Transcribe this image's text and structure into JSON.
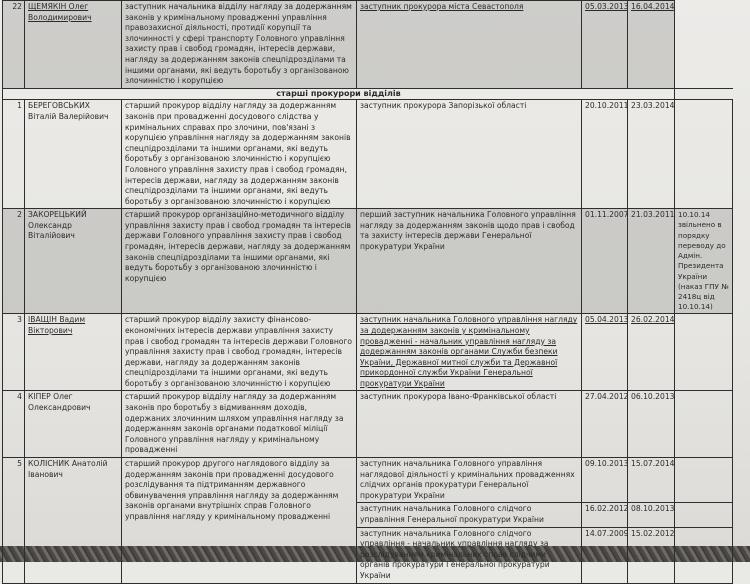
{
  "section_title": "старші прокурори відділів",
  "rows": [
    {
      "no": "22",
      "name": "ЩЕМЯКІН Олег Володимирович",
      "position": "заступник начальника відділу нагляду за додержанням законів у кримінальному провадженні управління правозахисної діяльності, протидії корупції та злочинності у сфері транспорту Головного управління захисту прав і свобод громадян, інтересів держави, нагляду за додержанням законів спецпідрозділами та іншими органами, які ведуть боротьбу з організованою злочинністю і корупцією",
      "previous": "заступник прокурора міста Севастополя",
      "from": "05.03.2013",
      "to": "16.04.2014",
      "note": ""
    },
    {
      "no": "1",
      "name": "БЕРЕГОВСЬКИХ Віталій Валерійович",
      "position": "старший прокурор відділу нагляду за додержанням законів при провадженні досудового слідства у кримінальних справах про злочини, пов'язані з корупцією управління нагляду за додержанням законів спецпідрозділами та іншими органами, які ведуть боротьбу з організованою злочинністю і корупцією Головного управління захисту прав і свобод громадян, інтересів держави, нагляду за додержанням законів спецпідрозділами та іншими органами, які ведуть боротьбу з організованою злочинністю і корупцією",
      "previous": "заступник прокурора Запорізької області",
      "from": "20.10.2011",
      "to": "23.03.2014",
      "note": ""
    },
    {
      "no": "2",
      "name": "ЗАКОРЕЦЬКИЙ Олександр Віталійович",
      "position": "старший прокурор організаційно-методичного відділу управління захисту прав і свобод громадян та інтересів держави Головного управління захисту прав і свобод громадян, інтересів держави, нагляду за додержанням законів спецпідрозділами та іншими органами, які ведуть боротьбу з організованою злочинністю і корупцією",
      "previous": "перший заступник начальника Головного управління нагляду за додержанням законів щодо прав і свобод та захисту інтересів держави Генеральної прокуратури України",
      "from": "01.11.2007",
      "to": "21.03.2011",
      "note": "10.10.14 звільнено в порядку переводу до Адмін. Президента України (наказ ГПУ № 2418ц від 10.10.14)"
    },
    {
      "no": "3",
      "name": "ІВАЩІН Вадим Вікторович",
      "position": "старший прокурор відділу захисту фінансово-економічних інтересів держави управління захисту прав і свобод громадян та інтересів держави Головного управління захисту прав і свобод громадян, інтересів держави, нагляду за додержанням законів спецпідрозділами та іншими органами, які ведуть боротьбу з організованою злочинністю і корупцією",
      "previous": "заступник начальника Головного управління нагляду за додержанням законів у кримінальному провадженні - начальник управління нагляду за додержанням законів органами Служби безпеки України, Державної митної служби та Державної прикордонної служби України Генеральної прокуратури України",
      "from": "05.04.2013",
      "to": "26.02.2014",
      "note": ""
    },
    {
      "no": "4",
      "name": "КІПЕР Олег Олександрович",
      "position": "старший прокурор відділу нагляду за додержанням законів про боротьбу з відмиванням доходів, одержаних злочинним шляхом управління нагляду за додержанням законів органами податкової міліції Головного управління нагляду у кримінальному провадженні",
      "previous": "заступник прокурора Івано-Франківської області",
      "from": "27.04.2012",
      "to": "06.10.2013",
      "note": ""
    },
    {
      "no": "5",
      "name": "КОЛІСНИК Анатолій Іванович",
      "position": "старший прокурор другого наглядового відділу за додержанням законів при провадженні досудового розслідування та підтриманням державного обвинувачення управління нагляду за додержанням законів органами внутрішніх справ Головного управління нагляду у кримінальному провадженні",
      "history": [
        {
          "previous": "заступник начальника Головного управління наглядової діяльності у кримінальних провадженнях слідчих органів прокуратури Генеральної прокуратури України",
          "from": "09.10.2013",
          "to": "15.07.2014"
        },
        {
          "previous": "заступник начальника Головного слідчого управління Генеральної прокуратури України",
          "from": "16.02.2012",
          "to": "08.10.2013"
        },
        {
          "previous": "заступник начальника Головного слідчого управління - начальник управління нагляду за розслідуванням кримінальних справ слідчими органів прокуратури Генеральної прокуратури України",
          "from": "14.07.2009",
          "to": "15.02.2012"
        }
      ]
    }
  ]
}
